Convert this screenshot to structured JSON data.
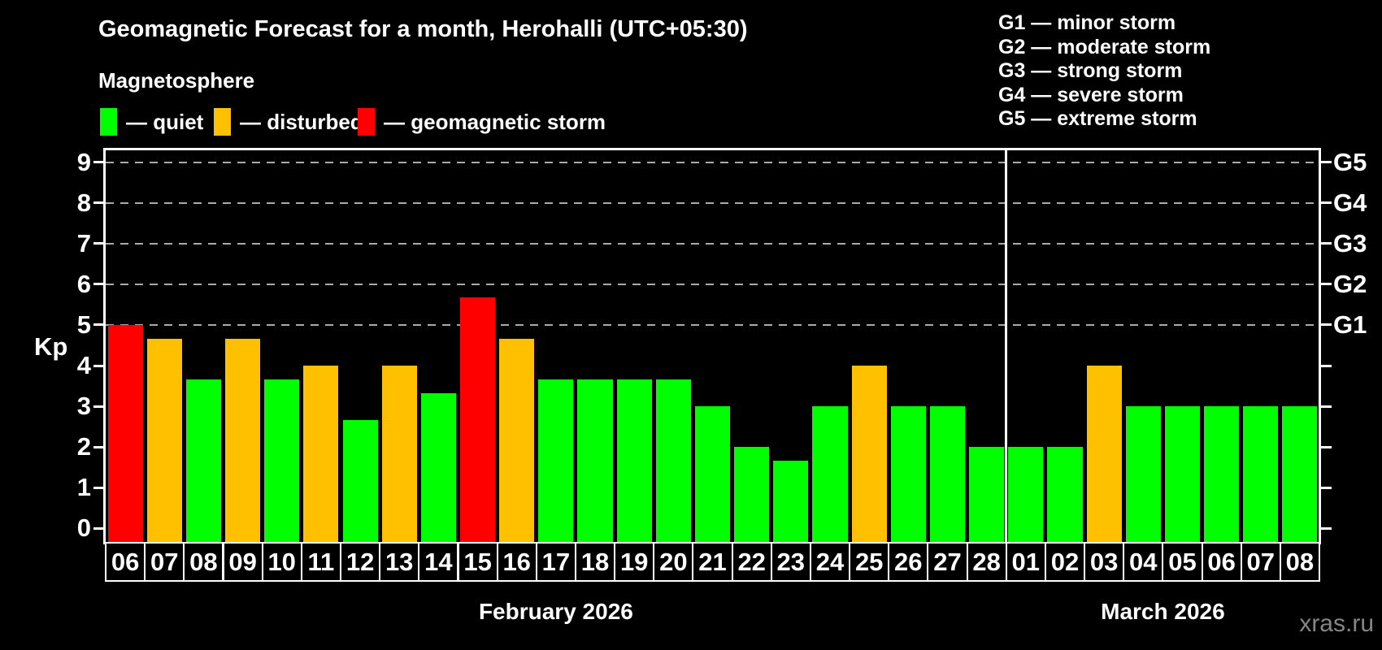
{
  "watermark": "xras.ru",
  "legend": {
    "dash": "—",
    "items": [
      {
        "status": "quiet",
        "label": "quiet",
        "color": "#00ff00"
      },
      {
        "status": "disturbed",
        "label": "disturbed",
        "color": "#ffc000"
      },
      {
        "status": "storm",
        "label": "geomagnetic storm",
        "color": "#ff0000"
      }
    ]
  },
  "storm_scale": [
    {
      "code": "G1",
      "label": "minor storm"
    },
    {
      "code": "G2",
      "label": "moderate storm"
    },
    {
      "code": "G3",
      "label": "strong storm"
    },
    {
      "code": "G4",
      "label": "severe storm"
    },
    {
      "code": "G5",
      "label": "extreme storm"
    }
  ],
  "chart_data": {
    "type": "bar",
    "title": "Geomagnetic Forecast for a month, Herohalli (UTC+05:30)",
    "subtitle": "Magnetosphere",
    "ylabel": "Kp",
    "ylim": [
      -0.35,
      9.35
    ],
    "yticks": [
      0,
      1,
      2,
      3,
      4,
      5,
      6,
      7,
      8,
      9
    ],
    "gridlines_at": [
      5,
      6,
      7,
      8,
      9
    ],
    "grid_style": "horizontal dashed gray lines at storm levels only",
    "right_axis": [
      {
        "code": "G5",
        "kp": 9
      },
      {
        "code": "G4",
        "kp": 8
      },
      {
        "code": "G3",
        "kp": 7
      },
      {
        "code": "G2",
        "kp": 6
      },
      {
        "code": "G1",
        "kp": 5
      }
    ],
    "months": [
      {
        "label": "February 2026",
        "days": 23
      },
      {
        "label": "March 2026",
        "days": 8
      }
    ],
    "colors": {
      "quiet": "#00ff00",
      "disturbed": "#ffc000",
      "storm": "#ff0000"
    },
    "bars": [
      {
        "day": "06",
        "value": 5.0,
        "status": "storm"
      },
      {
        "day": "07",
        "value": 4.67,
        "status": "disturbed"
      },
      {
        "day": "08",
        "value": 3.67,
        "status": "quiet"
      },
      {
        "day": "09",
        "value": 4.67,
        "status": "disturbed"
      },
      {
        "day": "10",
        "value": 3.67,
        "status": "quiet"
      },
      {
        "day": "11",
        "value": 4.0,
        "status": "disturbed"
      },
      {
        "day": "12",
        "value": 2.67,
        "status": "quiet"
      },
      {
        "day": "13",
        "value": 4.0,
        "status": "disturbed"
      },
      {
        "day": "14",
        "value": 3.33,
        "status": "quiet"
      },
      {
        "day": "15",
        "value": 5.67,
        "status": "storm"
      },
      {
        "day": "16",
        "value": 4.67,
        "status": "disturbed"
      },
      {
        "day": "17",
        "value": 3.67,
        "status": "quiet"
      },
      {
        "day": "18",
        "value": 3.67,
        "status": "quiet"
      },
      {
        "day": "19",
        "value": 3.67,
        "status": "quiet"
      },
      {
        "day": "20",
        "value": 3.67,
        "status": "quiet"
      },
      {
        "day": "21",
        "value": 3.0,
        "status": "quiet"
      },
      {
        "day": "22",
        "value": 2.0,
        "status": "quiet"
      },
      {
        "day": "23",
        "value": 1.67,
        "status": "quiet"
      },
      {
        "day": "24",
        "value": 3.0,
        "status": "quiet"
      },
      {
        "day": "25",
        "value": 4.0,
        "status": "disturbed"
      },
      {
        "day": "26",
        "value": 3.0,
        "status": "quiet"
      },
      {
        "day": "27",
        "value": 3.0,
        "status": "quiet"
      },
      {
        "day": "28",
        "value": 2.0,
        "status": "quiet"
      },
      {
        "day": "01",
        "value": 2.0,
        "status": "quiet"
      },
      {
        "day": "02",
        "value": 2.0,
        "status": "quiet"
      },
      {
        "day": "03",
        "value": 4.0,
        "status": "disturbed"
      },
      {
        "day": "04",
        "value": 3.0,
        "status": "quiet"
      },
      {
        "day": "05",
        "value": 3.0,
        "status": "quiet"
      },
      {
        "day": "06",
        "value": 3.0,
        "status": "quiet"
      },
      {
        "day": "07",
        "value": 3.0,
        "status": "quiet"
      },
      {
        "day": "08",
        "value": 3.0,
        "status": "quiet"
      }
    ]
  }
}
